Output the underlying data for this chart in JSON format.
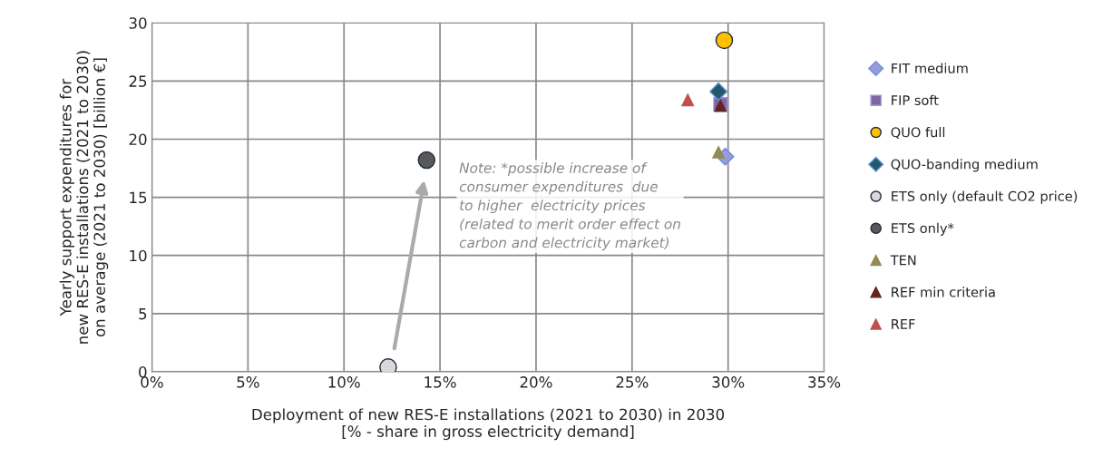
{
  "chart_data": {
    "type": "scatter",
    "xlabel": "Deployment of new RES-E installations (2021 to 2030) in 2030\n[% - share in gross electricity demand]",
    "ylabel": "Yearly support expenditures for\nnew RES-E installations (2021 to 2030)\non average (2021 to 2030) [billion €]",
    "xlim": [
      0,
      35
    ],
    "ylim": [
      0,
      30
    ],
    "xticks": [
      {
        "value": 0,
        "label": "0%"
      },
      {
        "value": 5,
        "label": "5%"
      },
      {
        "value": 10,
        "label": "10%"
      },
      {
        "value": 15,
        "label": "15%"
      },
      {
        "value": 20,
        "label": "20%"
      },
      {
        "value": 25,
        "label": "25%"
      },
      {
        "value": 30,
        "label": "30%"
      },
      {
        "value": 35,
        "label": "35%"
      }
    ],
    "yticks": [
      0,
      5,
      10,
      15,
      20,
      25,
      30
    ],
    "grid": true,
    "legend": "right",
    "annotations": [
      {
        "text": "Note: *possible increase of\nconsumer expenditures  due\nto higher  electricity prices\n(related to merit order effect on\ncarbon and electricity market)",
        "x": 14.3,
        "y": 18.2
      }
    ],
    "series": [
      {
        "name": "FIT medium",
        "color": "#9999dd",
        "marker": "diamond",
        "x": [
          29.85
        ],
        "values": [
          18.5
        ]
      },
      {
        "name": "FIP soft",
        "color": "#8064a2",
        "marker": "square",
        "x": [
          29.6
        ],
        "values": [
          23.0
        ]
      },
      {
        "name": "QUO full",
        "color": "#ffc000",
        "marker": "circle",
        "x": [
          29.8
        ],
        "values": [
          28.5
        ]
      },
      {
        "name": "QUO-banding medium",
        "color": "#215968",
        "marker": "diamond",
        "x": [
          29.5
        ],
        "values": [
          24.1
        ]
      },
      {
        "name": "ETS only (default CO2 price)",
        "color": "#d9d9d9",
        "marker": "circle",
        "x": [
          12.3
        ],
        "values": [
          0.4
        ]
      },
      {
        "name": "ETS only*",
        "color": "#595959",
        "marker": "circle",
        "x": [
          14.3
        ],
        "values": [
          18.2
        ]
      },
      {
        "name": "TEN",
        "color": "#948a54",
        "marker": "triangle",
        "x": [
          29.5
        ],
        "values": [
          18.9
        ]
      },
      {
        "name": "REF min criteria",
        "color": "#632523",
        "marker": "triangle",
        "x": [
          29.6
        ],
        "values": [
          22.9
        ]
      },
      {
        "name": "REF",
        "color": "#c0504d",
        "marker": "triangle",
        "x": [
          27.9
        ],
        "values": [
          23.4
        ]
      }
    ]
  }
}
